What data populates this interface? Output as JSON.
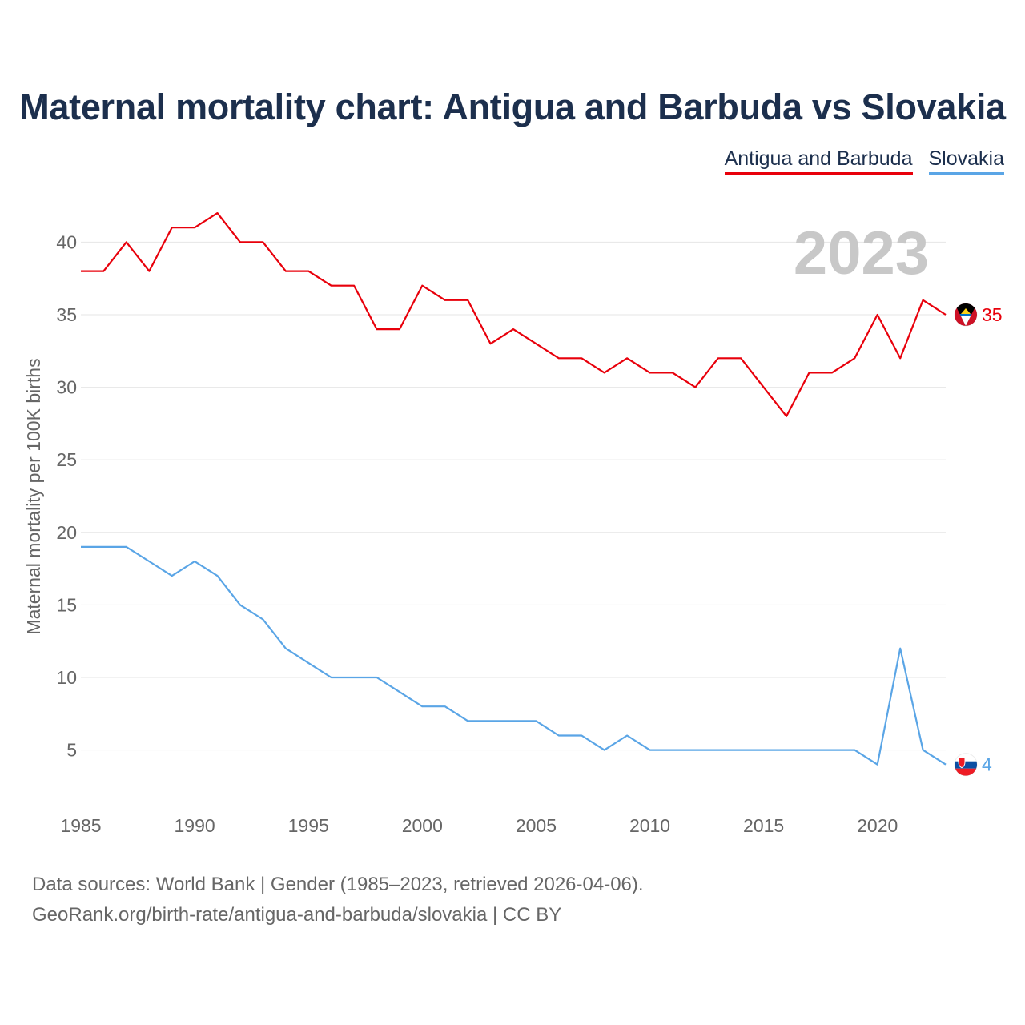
{
  "header": {
    "title": "Maternal mortality chart: Antigua and Barbuda vs Slovakia"
  },
  "legend": {
    "items": [
      {
        "label": "Antigua and Barbuda",
        "color": "#e8000b"
      },
      {
        "label": "Slovakia",
        "color": "#5aa5e6"
      }
    ]
  },
  "footer": {
    "source": "Data sources: World Bank | Gender (1985–2023, retrieved 2026-04-06).",
    "link": "GeoRank.org/birth-rate/antigua-and-barbuda/slovakia | CC BY"
  },
  "chart_data": {
    "type": "line",
    "title": "Maternal mortality chart: Antigua and Barbuda vs Slovakia",
    "xlabel": "",
    "ylabel": "Maternal mortality per 100K births",
    "year_label": "2023",
    "xlim": [
      1985,
      2023
    ],
    "ylim": [
      1.5,
      43
    ],
    "x_ticks": [
      1985,
      1990,
      1995,
      2000,
      2005,
      2010,
      2015,
      2020
    ],
    "y_ticks": [
      5,
      10,
      15,
      20,
      25,
      30,
      35,
      40
    ],
    "grid": true,
    "legend_position": "top-right",
    "x": [
      1985,
      1986,
      1987,
      1988,
      1989,
      1990,
      1991,
      1992,
      1993,
      1994,
      1995,
      1996,
      1997,
      1998,
      1999,
      2000,
      2001,
      2002,
      2003,
      2004,
      2005,
      2006,
      2007,
      2008,
      2009,
      2010,
      2011,
      2012,
      2013,
      2014,
      2015,
      2016,
      2017,
      2018,
      2019,
      2020,
      2021,
      2022,
      2023
    ],
    "series": [
      {
        "name": "Antigua and Barbuda",
        "color": "#e8000b",
        "end_label": "35",
        "values": [
          38,
          38,
          40,
          38,
          41,
          41,
          42,
          40,
          40,
          38,
          38,
          37,
          37,
          34,
          34,
          37,
          36,
          36,
          33,
          34,
          33,
          32,
          32,
          31,
          32,
          31,
          31,
          30,
          32,
          32,
          30,
          28,
          31,
          31,
          32,
          35,
          32,
          36,
          35
        ]
      },
      {
        "name": "Slovakia",
        "color": "#5aa5e6",
        "end_label": "4",
        "values": [
          19,
          19,
          19,
          18,
          17,
          18,
          17,
          15,
          14,
          12,
          11,
          10,
          10,
          10,
          9,
          8,
          8,
          7,
          7,
          7,
          7,
          6,
          6,
          5,
          6,
          5,
          5,
          5,
          5,
          5,
          5,
          5,
          5,
          5,
          5,
          4,
          12,
          5,
          4
        ]
      }
    ]
  }
}
